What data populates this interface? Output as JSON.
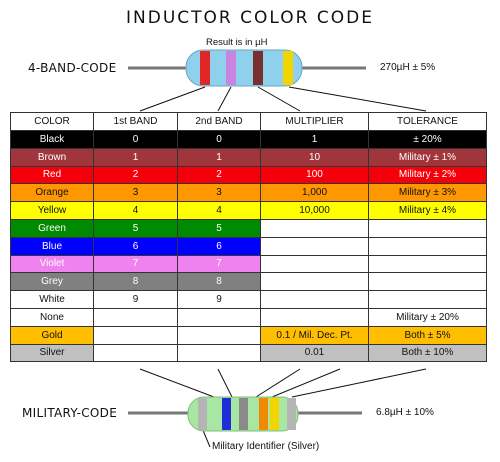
{
  "title": "INDUCTOR  COLOR  CODE",
  "four_band": {
    "label": "4-BAND-CODE",
    "note": "Result is in µH",
    "example_value": "270µH ± 5%",
    "bands": [
      "#e02626",
      "#c983e0",
      "#7a2f2f",
      "#f2d400"
    ]
  },
  "military": {
    "label": "MILITARY-CODE",
    "example_value": "6.8µH ± 10%",
    "identifier_note": "Military Identifier (Silver)",
    "bands": [
      "#b5b5b5",
      "#1f2ed6",
      "#8a8a8a",
      "#f08a00",
      "#f2d400",
      "#b5b5b5"
    ]
  },
  "table": {
    "headers": [
      "COLOR",
      "1st BAND",
      "2nd BAND",
      "MULTIPLIER",
      "TOLERANCE"
    ],
    "rows": [
      {
        "color": "Black",
        "bg": "#000000",
        "fg": "#ffffff",
        "band1": "0",
        "band2": "0",
        "multiplier": "1",
        "tolerance": "± 20%"
      },
      {
        "color": "Brown",
        "bg": "#a0363c",
        "fg": "#ffffff",
        "band1": "1",
        "band2": "1",
        "multiplier": "10",
        "tolerance": "Military ± 1%"
      },
      {
        "color": "Red",
        "bg": "#f5000a",
        "fg": "#ffffff",
        "band1": "2",
        "band2": "2",
        "multiplier": "100",
        "tolerance": "Military ± 2%"
      },
      {
        "color": "Orange",
        "bg": "#ff9700",
        "fg": "#111111",
        "band1": "3",
        "band2": "3",
        "multiplier": "1,000",
        "tolerance": "Military ± 3%"
      },
      {
        "color": "Yellow",
        "bg": "#ffff00",
        "fg": "#111111",
        "band1": "4",
        "band2": "4",
        "multiplier": "10,000",
        "tolerance": "Military ± 4%"
      },
      {
        "color": "Green",
        "bg": "#008a00",
        "fg": "#ffffff",
        "band1": "5",
        "band2": "5",
        "multiplier": "",
        "tolerance": ""
      },
      {
        "color": "Blue",
        "bg": "#0000ff",
        "fg": "#ffffff",
        "band1": "6",
        "band2": "6",
        "multiplier": "",
        "tolerance": ""
      },
      {
        "color": "Violet",
        "bg": "#ee82ee",
        "fg": "#ffffff",
        "band1": "7",
        "band2": "7",
        "multiplier": "",
        "tolerance": ""
      },
      {
        "color": "Grey",
        "bg": "#808080",
        "fg": "#ffffff",
        "band1": "8",
        "band2": "8",
        "multiplier": "",
        "tolerance": ""
      },
      {
        "color": "White",
        "bg": "#ffffff",
        "fg": "#111111",
        "band1": "9",
        "band2": "9",
        "multiplier": "",
        "tolerance": ""
      },
      {
        "color": "None",
        "bg": "#ffffff",
        "fg": "#111111",
        "band1": "",
        "band2": "",
        "multiplier": "",
        "tolerance": "Military ± 20%"
      },
      {
        "color": "Gold",
        "bg": "#ffbf00",
        "fg": "#111111",
        "band1": "",
        "band2": "",
        "multiplier": "0.1 / Mil. Dec. Pt.",
        "tolerance": "Both ± 5%"
      },
      {
        "color": "Silver",
        "bg": "#c0c0c0",
        "fg": "#111111",
        "band1": "",
        "band2": "",
        "multiplier": "0.01",
        "tolerance": "Both ± 10%"
      }
    ]
  }
}
